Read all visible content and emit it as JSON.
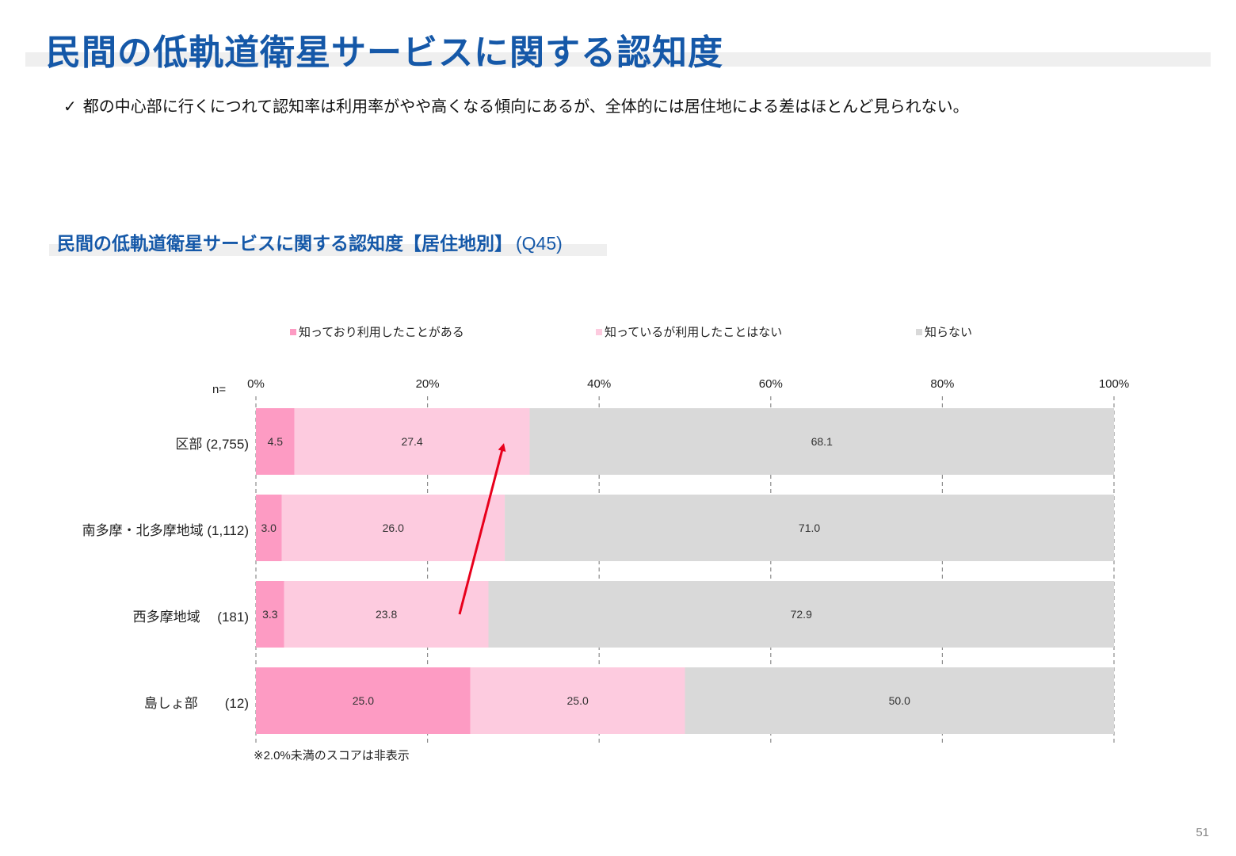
{
  "page": {
    "title": "民間の低軌道衛星サービスに関する認知度",
    "summary_check": "✓",
    "summary": "都の中心部に行くにつれて認知率は利用率がやや高くなる傾向にあるが、全体的には居住地による差はほとんど見られない。",
    "page_number": "51"
  },
  "chart_title": {
    "main": "民間の低軌道衛星サービスに関する認知度【居住地別】",
    "code": "(Q45)"
  },
  "n_label": "n=",
  "footnote": "※2.0%未満のスコアは非表示",
  "colors": {
    "used": "#fd9bc3",
    "known_not_used": "#fdcbdf",
    "unknown": "#d9d9d9",
    "arrow": "#e8001c",
    "title_blue": "#1558a8"
  },
  "chart_data": {
    "type": "bar",
    "orientation": "horizontal",
    "stacked": true,
    "categories": [
      "区部",
      "南多摩・北多摩地域",
      "西多摩地域",
      "島しょ部"
    ],
    "category_labels": [
      "区部 (2,755)",
      "南多摩・北多摩地域 (1,112)",
      "西多摩地域　 (181)",
      "島しょ部　　(12)"
    ],
    "series": [
      {
        "name": "知っており利用したことがある",
        "values": [
          4.5,
          3.0,
          3.3,
          25.0
        ],
        "labels": [
          "4.5",
          "3.0",
          "3.3",
          "25.0"
        ]
      },
      {
        "name": "知っているが利用したことはない",
        "values": [
          27.4,
          26.0,
          23.8,
          25.0
        ],
        "labels": [
          "27.4",
          "26.0",
          "23.8",
          "25.0"
        ]
      },
      {
        "name": "知らない",
        "values": [
          68.1,
          71.0,
          72.9,
          50.0
        ],
        "labels": [
          "68.1",
          "71.0",
          "72.9",
          "50.0"
        ]
      }
    ],
    "xlim": [
      0,
      100
    ],
    "xticks": [
      "0%",
      "20%",
      "40%",
      "60%",
      "80%",
      "100%"
    ],
    "grid": true,
    "legend_position": "top",
    "annotation": "arrow from 西多摩地域 up toward 区部"
  }
}
